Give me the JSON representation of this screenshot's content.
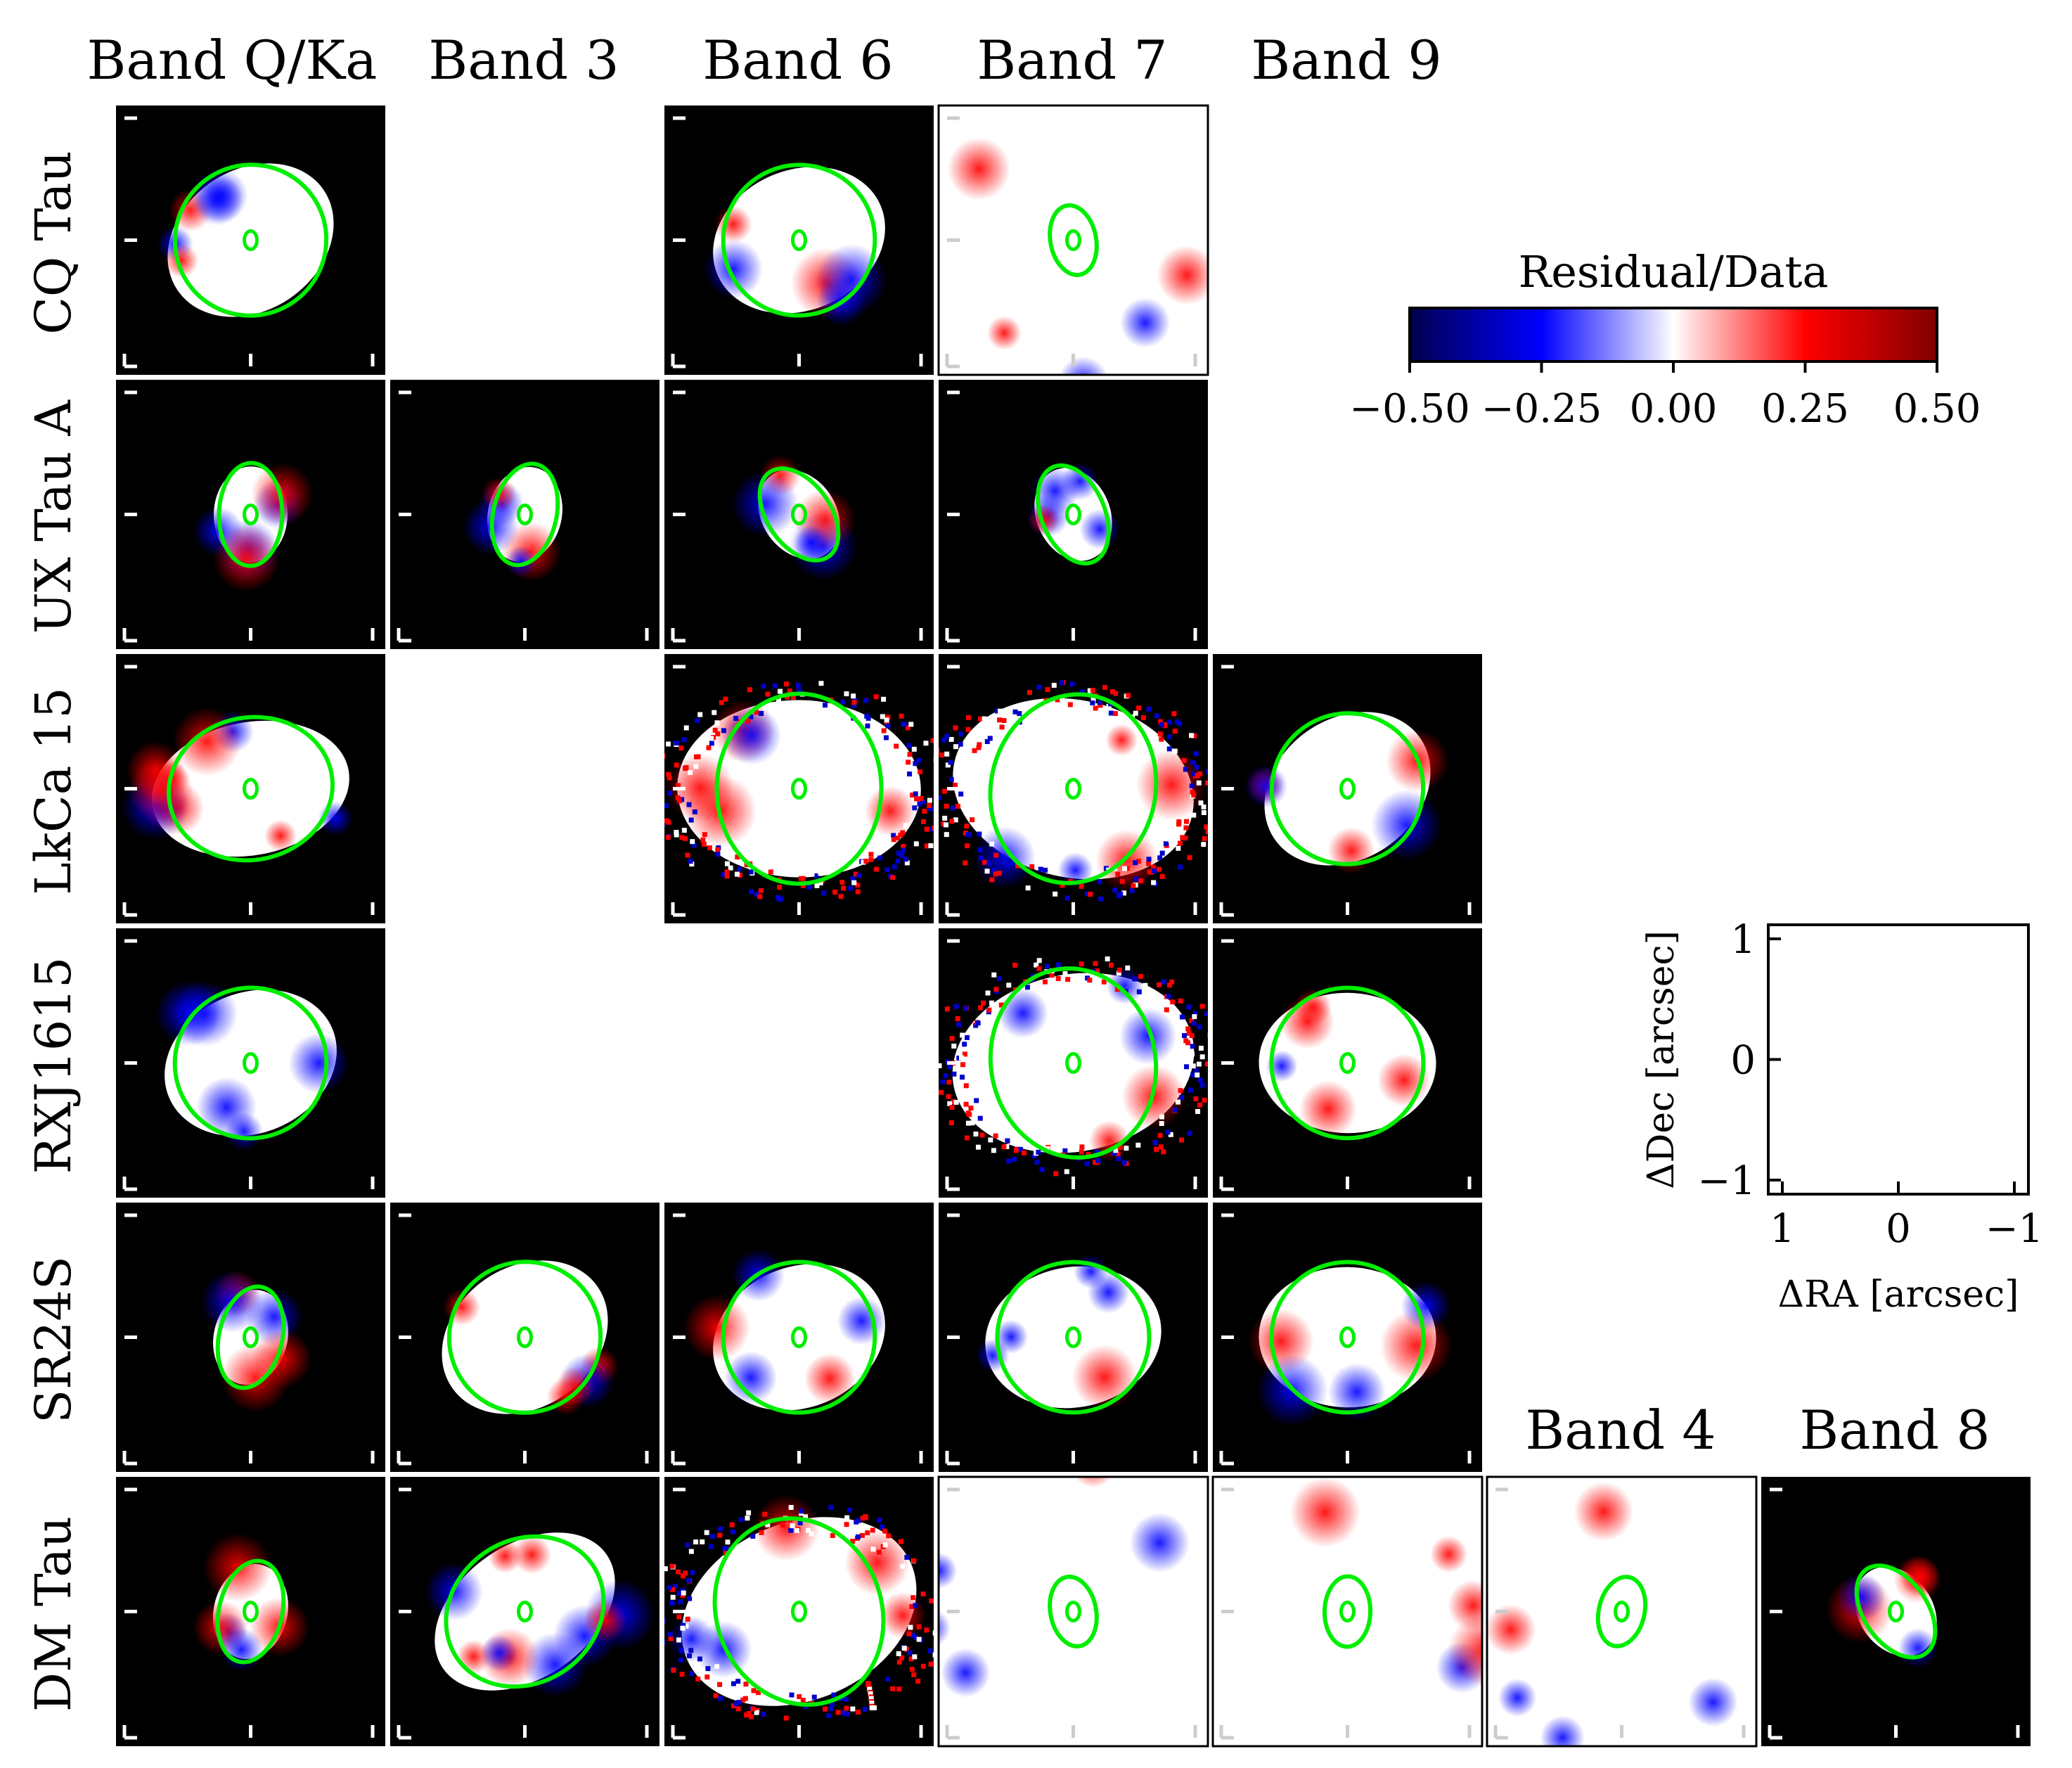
{
  "figure": {
    "column_headers": [
      "Band Q/Ka",
      "Band 3",
      "Band 6",
      "Band 7",
      "Band 9"
    ],
    "extra_column_headers": [
      "Band 4",
      "Band 8"
    ],
    "row_labels": [
      "CQ Tau",
      "UX Tau A",
      "LkCa 15",
      "RXJ1615",
      "SR24S",
      "DM Tau"
    ]
  },
  "panels": [
    {
      "row": 0,
      "col": 0,
      "source": "CQ Tau",
      "band": "Band Q/Ka",
      "style": "compact"
    },
    {
      "row": 0,
      "col": 2,
      "source": "CQ Tau",
      "band": "Band 6",
      "style": "compact"
    },
    {
      "row": 0,
      "col": 3,
      "source": "CQ Tau",
      "band": "Band 7",
      "style": "filled"
    },
    {
      "row": 1,
      "col": 0,
      "source": "UX Tau A",
      "band": "Band Q/Ka",
      "style": "small"
    },
    {
      "row": 1,
      "col": 1,
      "source": "UX Tau A",
      "band": "Band 3",
      "style": "small"
    },
    {
      "row": 1,
      "col": 2,
      "source": "UX Tau A",
      "band": "Band 6",
      "style": "small"
    },
    {
      "row": 1,
      "col": 3,
      "source": "UX Tau A",
      "band": "Band 7",
      "style": "small"
    },
    {
      "row": 2,
      "col": 0,
      "source": "LkCa 15",
      "band": "Band Q/Ka",
      "style": "ring"
    },
    {
      "row": 2,
      "col": 2,
      "source": "LkCa 15",
      "band": "Band 6",
      "style": "noisy"
    },
    {
      "row": 2,
      "col": 3,
      "source": "LkCa 15",
      "band": "Band 7",
      "style": "noisy"
    },
    {
      "row": 2,
      "col": 4,
      "source": "LkCa 15",
      "band": "Band 9",
      "style": "compact"
    },
    {
      "row": 3,
      "col": 0,
      "source": "RXJ1615",
      "band": "Band Q/Ka",
      "style": "compact"
    },
    {
      "row": 3,
      "col": 3,
      "source": "RXJ1615",
      "band": "Band 7",
      "style": "noisy"
    },
    {
      "row": 3,
      "col": 4,
      "source": "RXJ1615",
      "band": "Band 9",
      "style": "compact"
    },
    {
      "row": 4,
      "col": 0,
      "source": "SR24S",
      "band": "Band Q/Ka",
      "style": "small"
    },
    {
      "row": 4,
      "col": 1,
      "source": "SR24S",
      "band": "Band 3",
      "style": "compact"
    },
    {
      "row": 4,
      "col": 2,
      "source": "SR24S",
      "band": "Band 6",
      "style": "compact"
    },
    {
      "row": 4,
      "col": 3,
      "source": "SR24S",
      "band": "Band 7",
      "style": "compact"
    },
    {
      "row": 4,
      "col": 4,
      "source": "SR24S",
      "band": "Band 9",
      "style": "compact"
    },
    {
      "row": 5,
      "col": 0,
      "source": "DM Tau",
      "band": "Band Q/Ka",
      "style": "small"
    },
    {
      "row": 5,
      "col": 1,
      "source": "DM Tau",
      "band": "Band 3",
      "style": "ring"
    },
    {
      "row": 5,
      "col": 2,
      "source": "DM Tau",
      "band": "Band 6",
      "style": "noisy"
    },
    {
      "row": 5,
      "col": 3,
      "source": "DM Tau",
      "band": "Band 7",
      "style": "filled"
    },
    {
      "row": 5,
      "col": 4,
      "source": "DM Tau",
      "band": "Band 9",
      "style": "filled"
    },
    {
      "row": 5,
      "col": 5,
      "source": "DM Tau",
      "band": "Band 4",
      "style": "filled"
    },
    {
      "row": 5,
      "col": 6,
      "source": "DM Tau",
      "band": "Band 8",
      "style": "small"
    }
  ],
  "colorbar": {
    "title": "Residual/Data",
    "ticks": [
      "−0.50",
      "−0.25",
      "0.00",
      "0.25",
      "0.50"
    ],
    "range": [
      -0.5,
      0.5
    ],
    "colormap": "seismic",
    "colors": [
      "#00004d",
      "#0000ff",
      "#ffffff",
      "#ff0000",
      "#800000"
    ]
  },
  "key_axes": {
    "xlabel": "ΔRA [arcsec]",
    "ylabel": "ΔDec [arcsec]",
    "xticks": [
      "1",
      "0",
      "−1"
    ],
    "yticks": [
      "1",
      "0",
      "−1"
    ]
  },
  "colors": {
    "ellipse": "#00ee00",
    "panel_background": "#000000"
  }
}
